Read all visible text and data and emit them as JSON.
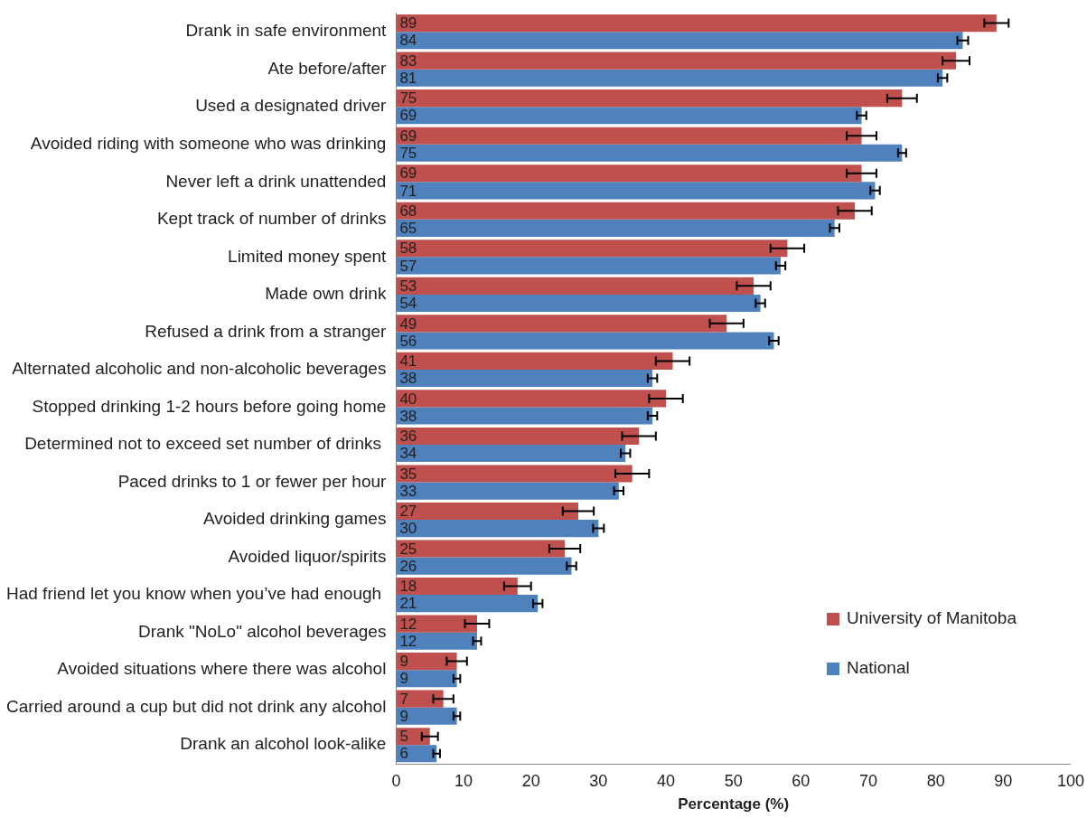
{
  "chart_data": {
    "type": "bar",
    "orientation": "horizontal",
    "xlabel": "Percentage (%)",
    "categories": [
      "Drank in safe environment",
      "Ate before/after",
      "Used a designated driver",
      "Avoided riding with someone who was drinking",
      "Never left a drink unattended",
      "Kept track of number of drinks",
      "Limited money spent",
      "Made own drink",
      "Refused a drink from a stranger",
      "Alternated alcoholic and non-alcoholic beverages",
      "Stopped drinking 1-2 hours before going home",
      "Determined not to exceed set number of drinks ",
      "Paced drinks to 1 or fewer per hour",
      "Avoided drinking games",
      "Avoided liquor/spirits",
      "Had friend let you know when you’ve had enough ",
      "Drank \"NoLo\" alcohol beverages",
      "Avoided situations where there was alcohol",
      "Carried around a cup but did not drink any alcohol",
      "Drank an alcohol look-alike"
    ],
    "series": [
      {
        "name": "University of Manitoba",
        "color": "#c0504d",
        "values": [
          89,
          83,
          75,
          69,
          69,
          68,
          58,
          53,
          49,
          41,
          40,
          36,
          35,
          27,
          25,
          18,
          12,
          9,
          7,
          5
        ],
        "errors": [
          1.8,
          2,
          2.2,
          2.2,
          2.2,
          2.5,
          2.5,
          2.5,
          2.5,
          2.5,
          2.5,
          2.5,
          2.5,
          2.3,
          2.3,
          2,
          1.8,
          1.5,
          1.5,
          1.2
        ]
      },
      {
        "name": "National",
        "color": "#4f81bd",
        "values": [
          84,
          81,
          69,
          75,
          71,
          65,
          57,
          54,
          56,
          38,
          38,
          34,
          33,
          30,
          26,
          21,
          12,
          9,
          9,
          6
        ],
        "errors": [
          0.8,
          0.7,
          0.7,
          0.6,
          0.7,
          0.7,
          0.7,
          0.7,
          0.7,
          0.7,
          0.7,
          0.7,
          0.7,
          0.8,
          0.7,
          0.7,
          0.6,
          0.5,
          0.5,
          0.5
        ]
      }
    ],
    "xlim": [
      0,
      100
    ],
    "xticks": [
      0,
      10,
      20,
      30,
      40,
      50,
      60,
      70,
      80,
      90,
      100
    ],
    "data_labels": true,
    "legend": "bottom right",
    "grid": false
  }
}
